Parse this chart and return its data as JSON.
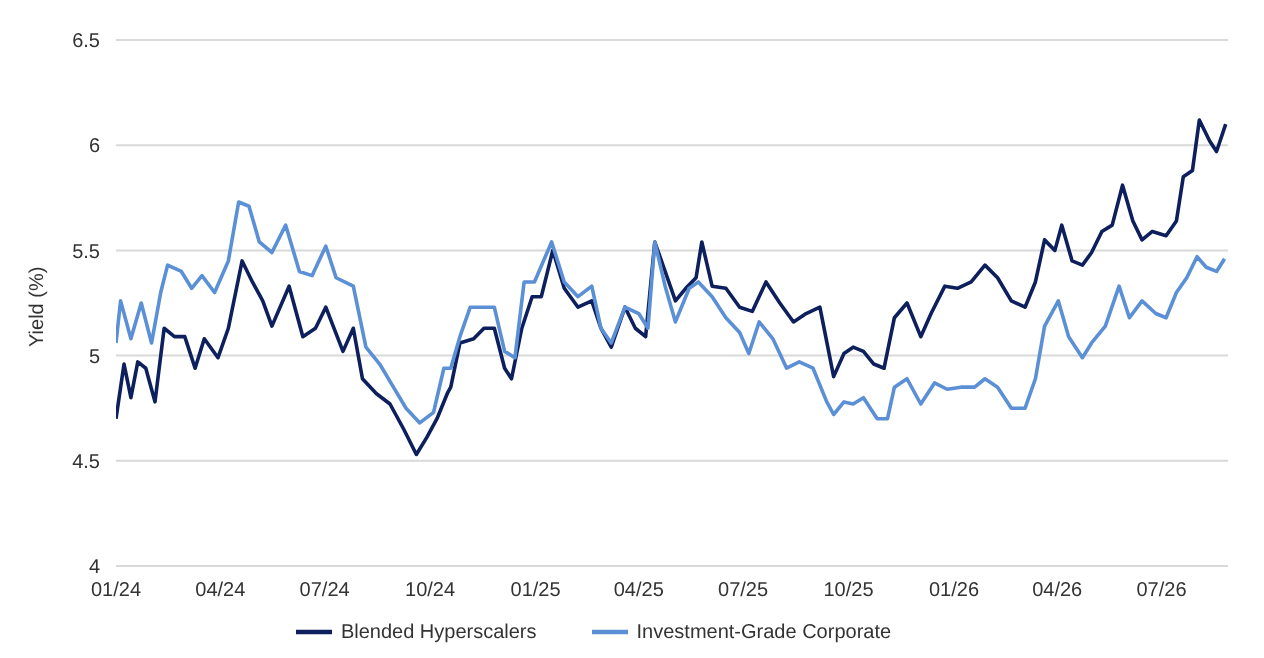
{
  "chart_data": {
    "type": "line",
    "ylabel": "Yield (%)",
    "xlim": [
      "2024-01-01",
      "2026-08-28"
    ],
    "xticks": [
      {
        "value": "2024-01-01",
        "label": "01/24"
      },
      {
        "value": "2024-04-01",
        "label": "04/24"
      },
      {
        "value": "2024-07-01",
        "label": "07/24"
      },
      {
        "value": "2024-10-01",
        "label": "10/24"
      },
      {
        "value": "2025-01-01",
        "label": "01/25"
      },
      {
        "value": "2025-04-01",
        "label": "04/25"
      },
      {
        "value": "2025-07-01",
        "label": "07/25"
      },
      {
        "value": "2025-10-01",
        "label": "10/25"
      },
      {
        "value": "2026-01-01",
        "label": "01/26"
      },
      {
        "value": "2026-04-01",
        "label": "04/26"
      },
      {
        "value": "2026-07-01",
        "label": "07/26"
      }
    ],
    "ylim": [
      4,
      6.5
    ],
    "yticks": [
      4,
      4.5,
      5,
      5.5,
      6,
      6.5
    ],
    "grid": "y",
    "legend": "bottom",
    "marker": "none",
    "line_style": "solid",
    "series": [
      {
        "name": "Blended Hyperscalers",
        "color": "#0d1f5c",
        "x": [
          "2024-01-01",
          "2024-01-08",
          "2024-01-14",
          "2024-01-20",
          "2024-01-27",
          "2024-02-04",
          "2024-02-12",
          "2024-02-21",
          "2024-03-01",
          "2024-03-10",
          "2024-03-18",
          "2024-03-30",
          "2024-04-08",
          "2024-04-20",
          "2024-04-29",
          "2024-05-08",
          "2024-05-16",
          "2024-05-31",
          "2024-06-12",
          "2024-06-23",
          "2024-07-02",
          "2024-07-17",
          "2024-07-26",
          "2024-08-03",
          "2024-08-15",
          "2024-08-27",
          "2024-09-08",
          "2024-09-19",
          "2024-09-28",
          "2024-10-07",
          "2024-10-16",
          "2024-10-19",
          "2024-10-27",
          "2024-11-08",
          "2024-11-17",
          "2024-11-26",
          "2024-12-05",
          "2024-12-11",
          "2024-12-20",
          "2024-12-29",
          "2025-01-06",
          "2025-01-16",
          "2025-01-26",
          "2025-02-07",
          "2025-02-19",
          "2025-02-27",
          "2025-03-08",
          "2025-03-20",
          "2025-03-29",
          "2025-04-07",
          "2025-04-15",
          "2025-04-24",
          "2025-05-03",
          "2025-05-12",
          "2025-05-21",
          "2025-05-26",
          "2025-06-04",
          "2025-06-16",
          "2025-06-28",
          "2025-07-09",
          "2025-07-21",
          "2025-08-02",
          "2025-08-14",
          "2025-08-25",
          "2025-09-06",
          "2025-09-18",
          "2025-09-27",
          "2025-10-05",
          "2025-10-14",
          "2025-10-23",
          "2025-11-01",
          "2025-11-10",
          "2025-11-21",
          "2025-12-03",
          "2025-12-12",
          "2025-12-24",
          "2026-01-04",
          "2026-01-16",
          "2026-01-28",
          "2026-02-08",
          "2026-02-20",
          "2026-03-04",
          "2026-03-13",
          "2026-03-21",
          "2026-03-30",
          "2026-04-05",
          "2026-04-14",
          "2026-04-23",
          "2026-05-01",
          "2026-05-10",
          "2026-05-19",
          "2026-05-28",
          "2026-06-06",
          "2026-06-14",
          "2026-06-23",
          "2026-07-05",
          "2026-07-14",
          "2026-07-20",
          "2026-07-28",
          "2026-08-03",
          "2026-08-12",
          "2026-08-18",
          "2026-08-26"
        ],
        "values": [
          4.7,
          4.96,
          4.8,
          4.97,
          4.94,
          4.78,
          5.13,
          5.09,
          5.09,
          4.94,
          5.08,
          4.99,
          5.13,
          5.45,
          5.35,
          5.26,
          5.14,
          5.33,
          5.09,
          5.13,
          5.23,
          5.02,
          5.13,
          4.89,
          4.82,
          4.77,
          4.65,
          4.53,
          4.61,
          4.7,
          4.82,
          4.85,
          5.06,
          5.08,
          5.13,
          5.13,
          4.94,
          4.89,
          5.13,
          5.28,
          5.28,
          5.5,
          5.32,
          5.23,
          5.26,
          5.13,
          5.04,
          5.23,
          5.13,
          5.09,
          5.54,
          5.4,
          5.26,
          5.32,
          5.37,
          5.54,
          5.33,
          5.32,
          5.23,
          5.21,
          5.35,
          5.25,
          5.16,
          5.2,
          5.23,
          4.9,
          5.01,
          5.04,
          5.02,
          4.96,
          4.94,
          5.18,
          5.25,
          5.09,
          5.2,
          5.33,
          5.32,
          5.35,
          5.43,
          5.37,
          5.26,
          5.23,
          5.35,
          5.55,
          5.5,
          5.62,
          5.45,
          5.43,
          5.49,
          5.59,
          5.62,
          5.81,
          5.64,
          5.55,
          5.59,
          5.57,
          5.64,
          5.85,
          5.88,
          6.12,
          6.02,
          5.97,
          6.1
        ]
      },
      {
        "name": "Investment-Grade Corporate",
        "color": "#5b8fd6",
        "x": [
          "2024-01-01",
          "2024-01-05",
          "2024-01-14",
          "2024-01-23",
          "2024-02-01",
          "2024-02-09",
          "2024-02-15",
          "2024-02-27",
          "2024-03-07",
          "2024-03-16",
          "2024-03-27",
          "2024-04-08",
          "2024-04-17",
          "2024-04-26",
          "2024-05-05",
          "2024-05-16",
          "2024-05-28",
          "2024-06-09",
          "2024-06-20",
          "2024-07-02",
          "2024-07-11",
          "2024-07-26",
          "2024-08-06",
          "2024-08-18",
          "2024-08-30",
          "2024-09-10",
          "2024-09-22",
          "2024-10-04",
          "2024-10-13",
          "2024-10-19",
          "2024-10-27",
          "2024-11-05",
          "2024-11-17",
          "2024-11-26",
          "2024-12-05",
          "2024-12-14",
          "2024-12-22",
          "2024-12-31",
          "2025-01-15",
          "2025-01-26",
          "2025-02-07",
          "2025-02-19",
          "2025-02-27",
          "2025-03-08",
          "2025-03-20",
          "2025-04-01",
          "2025-04-09",
          "2025-04-15",
          "2025-04-24",
          "2025-05-03",
          "2025-05-15",
          "2025-05-23",
          "2025-06-04",
          "2025-06-16",
          "2025-06-28",
          "2025-07-06",
          "2025-07-15",
          "2025-07-27",
          "2025-08-08",
          "2025-08-19",
          "2025-08-31",
          "2025-09-12",
          "2025-09-18",
          "2025-09-27",
          "2025-10-05",
          "2025-10-14",
          "2025-10-26",
          "2025-11-04",
          "2025-11-10",
          "2025-11-21",
          "2025-12-03",
          "2025-12-15",
          "2025-12-26",
          "2026-01-07",
          "2026-01-19",
          "2026-01-28",
          "2026-02-08",
          "2026-02-20",
          "2026-03-04",
          "2026-03-13",
          "2026-03-21",
          "2026-04-02",
          "2026-04-11",
          "2026-04-23",
          "2026-05-01",
          "2026-05-13",
          "2026-05-25",
          "2026-06-03",
          "2026-06-14",
          "2026-06-26",
          "2026-07-05",
          "2026-07-14",
          "2026-07-23",
          "2026-08-01",
          "2026-08-09",
          "2026-08-18",
          "2026-08-25"
        ],
        "values": [
          5.06,
          5.26,
          5.08,
          5.25,
          5.06,
          5.3,
          5.43,
          5.4,
          5.32,
          5.38,
          5.3,
          5.45,
          5.73,
          5.71,
          5.54,
          5.49,
          5.62,
          5.4,
          5.38,
          5.52,
          5.37,
          5.33,
          5.04,
          4.96,
          4.85,
          4.75,
          4.68,
          4.73,
          4.94,
          4.94,
          5.09,
          5.23,
          5.23,
          5.23,
          5.02,
          4.99,
          5.35,
          5.35,
          5.54,
          5.35,
          5.28,
          5.33,
          5.13,
          5.06,
          5.23,
          5.2,
          5.13,
          5.54,
          5.33,
          5.16,
          5.32,
          5.35,
          5.28,
          5.18,
          5.11,
          5.01,
          5.16,
          5.08,
          4.94,
          4.97,
          4.94,
          4.78,
          4.72,
          4.78,
          4.77,
          4.8,
          4.7,
          4.7,
          4.85,
          4.89,
          4.77,
          4.87,
          4.84,
          4.85,
          4.85,
          4.89,
          4.85,
          4.75,
          4.75,
          4.89,
          5.14,
          5.26,
          5.09,
          4.99,
          5.06,
          5.14,
          5.33,
          5.18,
          5.26,
          5.2,
          5.18,
          5.3,
          5.37,
          5.47,
          5.42,
          5.4,
          5.46
        ]
      }
    ]
  }
}
